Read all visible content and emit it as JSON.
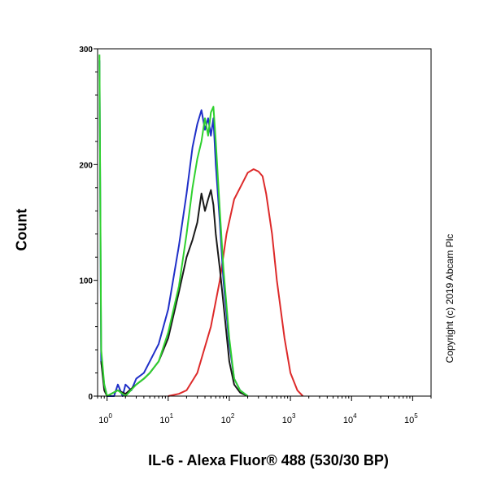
{
  "chart_data": {
    "type": "line",
    "title": "",
    "xlabel": "IL-6 - Alexa Fluor® 488 (530/30 BP)",
    "ylabel": "Count",
    "xscale": "log",
    "xlim": [
      0.7,
      200000
    ],
    "ylim": [
      0,
      300
    ],
    "x_ticks": [
      {
        "value": 1,
        "base": "10",
        "exp": "0"
      },
      {
        "value": 10,
        "base": "10",
        "exp": "1"
      },
      {
        "value": 100,
        "base": "10",
        "exp": "2"
      },
      {
        "value": 1000,
        "base": "10",
        "exp": "3"
      },
      {
        "value": 10000,
        "base": "10",
        "exp": "4"
      },
      {
        "value": 100000,
        "base": "10",
        "exp": "5"
      }
    ],
    "y_ticks": [
      {
        "value": 0,
        "label": "0"
      },
      {
        "value": 100,
        "label": "100"
      },
      {
        "value": 200,
        "label": "200"
      },
      {
        "value": 300,
        "label": "300"
      }
    ],
    "grid": false,
    "legend": "none",
    "series": [
      {
        "color": "#dd2a2a",
        "x": [
          10,
          15,
          20,
          30,
          50,
          70,
          90,
          120,
          150,
          200,
          250,
          300,
          350,
          400,
          500,
          600,
          800,
          1000,
          1300,
          1600
        ],
        "y": [
          0,
          2,
          5,
          20,
          60,
          100,
          140,
          170,
          180,
          193,
          196,
          194,
          190,
          175,
          140,
          100,
          50,
          20,
          5,
          0
        ]
      },
      {
        "color": "#1f2fc8",
        "x": [
          0.75,
          0.8,
          0.9,
          1.0,
          1.3,
          1.5,
          1.8,
          2.0,
          2.5,
          3,
          4,
          5,
          7,
          10,
          15,
          20,
          25,
          30,
          35,
          40,
          45,
          50,
          55,
          60,
          70,
          80,
          100,
          120,
          150,
          200
        ],
        "y": [
          290,
          30,
          10,
          0,
          0,
          10,
          0,
          10,
          5,
          15,
          20,
          30,
          45,
          75,
          130,
          175,
          215,
          235,
          247,
          230,
          240,
          225,
          240,
          200,
          150,
          100,
          45,
          15,
          5,
          0
        ]
      },
      {
        "color": "#1a1a1a",
        "x": [
          0.8,
          0.9,
          1.0,
          1.5,
          2.0,
          3,
          4,
          5,
          7,
          10,
          15,
          20,
          25,
          30,
          35,
          40,
          45,
          50,
          55,
          60,
          70,
          80,
          100,
          120,
          150,
          200
        ],
        "y": [
          30,
          5,
          0,
          5,
          2,
          10,
          15,
          20,
          30,
          50,
          90,
          120,
          135,
          150,
          175,
          160,
          170,
          178,
          165,
          140,
          110,
          80,
          30,
          10,
          3,
          0
        ]
      },
      {
        "color": "#2fd12f",
        "x": [
          0.75,
          0.8,
          0.9,
          1.0,
          1.5,
          2.0,
          3,
          4,
          5,
          7,
          10,
          15,
          20,
          25,
          30,
          35,
          40,
          45,
          50,
          55,
          60,
          70,
          80,
          100,
          120,
          150,
          200
        ],
        "y": [
          295,
          40,
          10,
          0,
          5,
          0,
          10,
          15,
          20,
          30,
          55,
          95,
          140,
          180,
          205,
          220,
          240,
          225,
          245,
          250,
          220,
          160,
          110,
          50,
          15,
          5,
          0
        ]
      }
    ]
  },
  "copyright": "Copyright (c) 2019 Abcam Plc"
}
